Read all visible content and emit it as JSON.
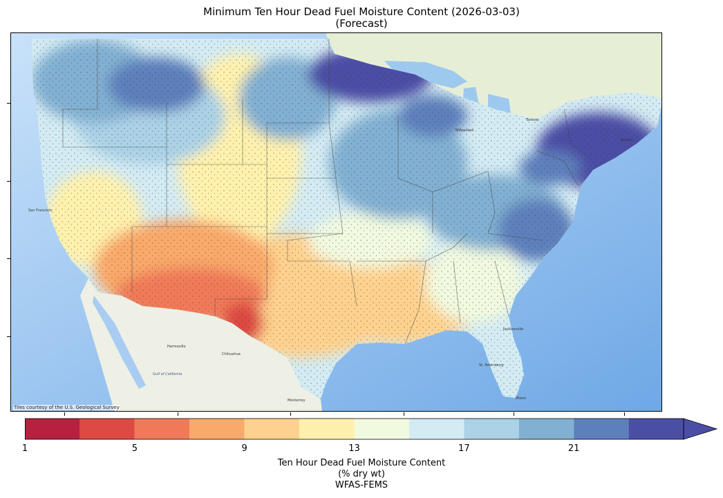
{
  "title": {
    "line1": "Minimum Ten Hour Dead Fuel Moisture Content (2026-03-03)",
    "line2": "(Forecast)"
  },
  "map": {
    "attribution": "Tiles courtesy of the U.S. Geological Survey",
    "ocean_color": "#a9cdf2",
    "land_color": "#eef0e6",
    "ocean_labels": [
      "Gulf of California"
    ],
    "city_labels": [
      "Hermosillo",
      "Chihuahua",
      "Monterrey",
      "San Francisco",
      "Milwaukee",
      "Toronto",
      "Boston",
      "St. Petersburg",
      "Jacksonville",
      "Miami"
    ]
  },
  "colorbar": {
    "label_line1": "Ten Hour Dead Fuel Moisture Content",
    "label_line2": "(% dry wt)",
    "label_line3": "WFAS-FEMS",
    "ticks": [
      "1",
      "5",
      "9",
      "13",
      "17",
      "21"
    ],
    "tick_values": [
      1,
      5,
      9,
      13,
      17,
      21
    ],
    "range": [
      1,
      25
    ],
    "extend": "max",
    "bins": [
      {
        "from": 1,
        "to": 3,
        "color": "#b5213f"
      },
      {
        "from": 3,
        "to": 5,
        "color": "#dd4a43"
      },
      {
        "from": 5,
        "to": 7,
        "color": "#f07a58"
      },
      {
        "from": 7,
        "to": 9,
        "color": "#f9a96a"
      },
      {
        "from": 9,
        "to": 11,
        "color": "#fed28e"
      },
      {
        "from": 11,
        "to": 13,
        "color": "#fff1ad"
      },
      {
        "from": 13,
        "to": 15,
        "color": "#f1f9df"
      },
      {
        "from": 15,
        "to": 17,
        "color": "#d3ebf3"
      },
      {
        "from": 17,
        "to": 19,
        "color": "#abd2e6"
      },
      {
        "from": 19,
        "to": 21,
        "color": "#82b0d2"
      },
      {
        "from": 21,
        "to": 23,
        "color": "#5d80bc"
      },
      {
        "from": 23,
        "to": 25,
        "color": "#4b4ea5"
      }
    ]
  }
}
